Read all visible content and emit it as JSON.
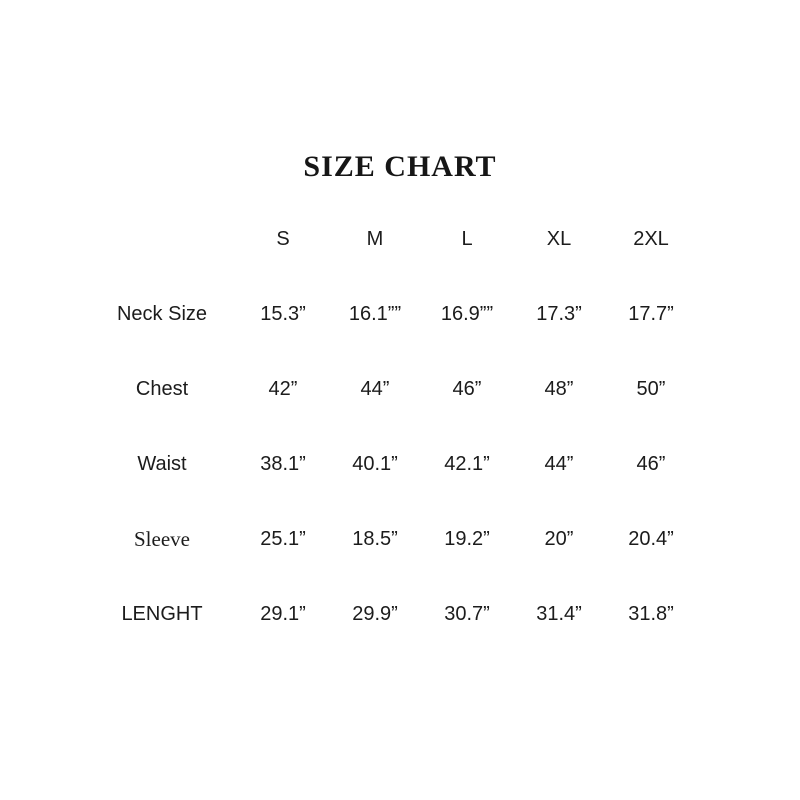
{
  "page": {
    "background_color": "#ffffff",
    "text_color": "#1c1c1c"
  },
  "chart_data": {
    "type": "table",
    "title": "SIZE CHART",
    "columns": [
      "S",
      "M",
      "L",
      "XL",
      "2XL"
    ],
    "rows": [
      {
        "label": "Neck Size",
        "values": [
          "15.3”",
          "16.1””",
          "16.9””",
          "17.3”",
          "17.7”"
        ]
      },
      {
        "label": "Chest",
        "values": [
          "42”",
          "44”",
          "46”",
          "48”",
          "50”"
        ]
      },
      {
        "label": "Waist",
        "values": [
          "38.1”",
          "40.1”",
          "42.1”",
          "44”",
          "46”"
        ]
      },
      {
        "label": "Sleeve",
        "values": [
          "25.1”",
          "18.5”",
          "19.2”",
          "20”",
          "20.4”"
        ]
      },
      {
        "label": "LENGHT",
        "values": [
          "29.1”",
          "29.9”",
          "30.7”",
          "31.4”",
          "31.8”"
        ]
      }
    ]
  }
}
